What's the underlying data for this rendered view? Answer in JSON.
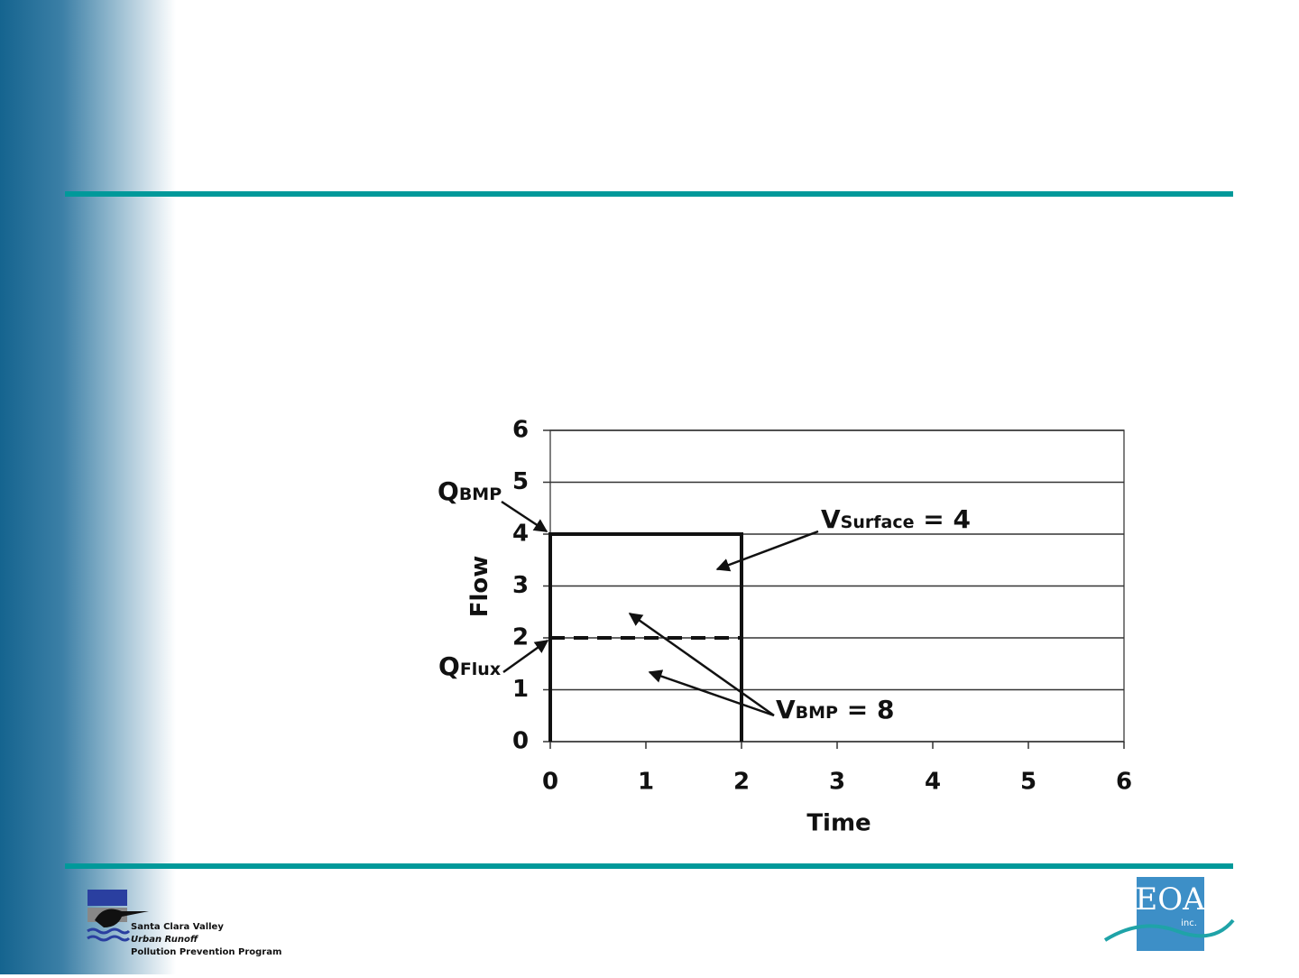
{
  "chart_data": {
    "type": "line",
    "x_label": "Time",
    "y_label": "Flow",
    "xlim": [
      0,
      6
    ],
    "xticks": [
      0,
      1,
      2,
      3,
      4,
      5,
      6
    ],
    "ylim": [
      0,
      6
    ],
    "yticks": [
      0,
      1,
      2,
      3,
      4,
      5,
      6
    ],
    "grid": true,
    "series": [
      {
        "x": [
          0,
          0,
          2,
          2
        ],
        "values": [
          0,
          4,
          4,
          0
        ],
        "color": "#111111",
        "style": "solid"
      },
      {
        "x": [
          0,
          2
        ],
        "values": [
          2,
          2
        ],
        "color": "#111111",
        "style": "dashed"
      }
    ],
    "annotations": [
      {
        "base": "Q",
        "sub": "BMP",
        "rest": ""
      },
      {
        "base": "Q",
        "sub": "Flux",
        "rest": ""
      },
      {
        "base": "V",
        "sub": "Surface",
        "rest": " = 4"
      },
      {
        "base": "V",
        "sub": "BMP",
        "rest": " = 8"
      }
    ]
  },
  "footer": {
    "left_logo": [
      "Santa Clara Valley",
      "Urban Runoff",
      "Pollution Prevention Program"
    ],
    "right_logo": {
      "name": "EOA",
      "suffix": "inc."
    }
  }
}
